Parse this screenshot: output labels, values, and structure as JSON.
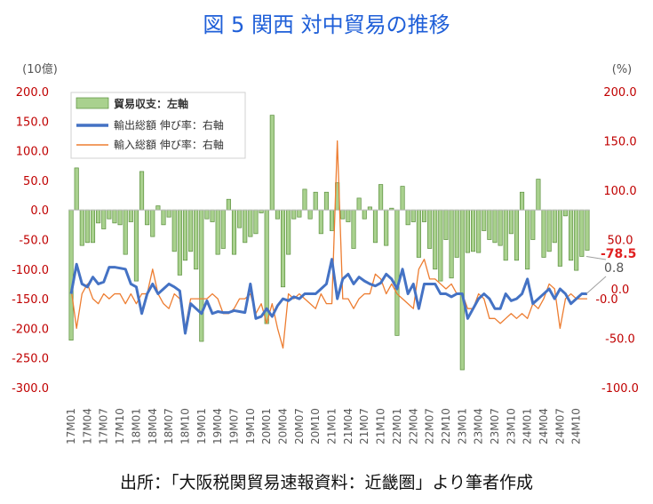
{
  "title": "図 5 関西 対中貿易の推移",
  "source": "出所：「大阪税関貿易速報資料：近畿圏」より筆者作成",
  "chart_data": {
    "type": "bar+line",
    "left_unit": "(10億)",
    "right_unit": "(%)",
    "left_ticks": [
      "200.0",
      "150.0",
      "100.0",
      "50.0",
      "0.0",
      "-50.0",
      "-100.0",
      "-150.0",
      "-200.0",
      "-250.0",
      "-300.0"
    ],
    "left_tick_values": [
      200,
      150,
      100,
      50,
      0,
      -50,
      -100,
      -150,
      -200,
      -250,
      -300
    ],
    "right_ticks": [
      "200.0",
      "150.0",
      "100.0",
      "50.0",
      "0.0",
      "-50.0",
      "-100.0"
    ],
    "right_tick_values": [
      200,
      150,
      100,
      50,
      0,
      -50,
      -100
    ],
    "right_tick_extra": "-0.0",
    "ylim_left": [
      -300,
      200
    ],
    "ylim_right": [
      -100,
      200
    ],
    "x_tick_labels": [
      "17M01",
      "17M04",
      "17M07",
      "17M10",
      "18M01",
      "18M04",
      "18M07",
      "18M10",
      "19M01",
      "19M04",
      "19M07",
      "19M10",
      "20M01",
      "20M04",
      "20M07",
      "20M10",
      "21M01",
      "21M04",
      "21M07",
      "21M10",
      "22M01",
      "22M04",
      "22M07",
      "22M10",
      "23M01",
      "23M04",
      "23M07",
      "23M10",
      "24M01",
      "24M04",
      "24M07",
      "24M10"
    ],
    "months": [
      "17M01",
      "17M02",
      "17M03",
      "17M04",
      "17M05",
      "17M06",
      "17M07",
      "17M08",
      "17M09",
      "17M10",
      "17M11",
      "17M12",
      "18M01",
      "18M02",
      "18M03",
      "18M04",
      "18M05",
      "18M06",
      "18M07",
      "18M08",
      "18M09",
      "18M10",
      "18M11",
      "18M12",
      "19M01",
      "19M02",
      "19M03",
      "19M04",
      "19M05",
      "19M06",
      "19M07",
      "19M08",
      "19M09",
      "19M10",
      "19M11",
      "19M12",
      "20M01",
      "20M02",
      "20M03",
      "20M04",
      "20M05",
      "20M06",
      "20M07",
      "20M08",
      "20M09",
      "20M10",
      "20M11",
      "20M12",
      "21M01",
      "21M02",
      "21M03",
      "21M04",
      "21M05",
      "21M06",
      "21M07",
      "21M08",
      "21M09",
      "21M10",
      "21M11",
      "21M12",
      "22M01",
      "22M02",
      "22M03",
      "22M04",
      "22M05",
      "22M06",
      "22M07",
      "22M08",
      "22M09",
      "22M10",
      "22M11",
      "22M12",
      "23M01",
      "23M02",
      "23M03",
      "23M04",
      "23M05",
      "23M06",
      "23M07",
      "23M08",
      "23M09",
      "23M10",
      "23M11",
      "23M12",
      "24M01",
      "24M02",
      "24M03",
      "24M04",
      "24M05",
      "24M06",
      "24M07",
      "24M08",
      "24M09",
      "24M10",
      "24M11",
      "24M12"
    ],
    "series": [
      {
        "name": "貿易収支：左軸",
        "axis": "left",
        "kind": "bar",
        "color": "#a9d18e",
        "stroke": "#5a8f3c",
        "values": [
          -220,
          71,
          -60,
          -55,
          -55,
          -22,
          -32,
          -15,
          -22,
          -25,
          -75,
          -20,
          -120,
          65,
          -25,
          -45,
          7,
          -25,
          -12,
          -70,
          -110,
          -85,
          -70,
          -100,
          -222,
          -15,
          -20,
          -75,
          -65,
          18,
          -75,
          -30,
          -55,
          -45,
          -40,
          -5,
          -192,
          160,
          -15,
          -130,
          -75,
          -15,
          -12,
          35,
          -15,
          30,
          -40,
          30,
          -35,
          46,
          -15,
          -20,
          -65,
          20,
          -15,
          5,
          -55,
          43,
          -60,
          3,
          -212,
          40,
          -25,
          -20,
          -80,
          -20,
          -65,
          -100,
          -120,
          -50,
          -115,
          -80,
          -270,
          -72,
          -70,
          -72,
          -35,
          -50,
          -55,
          -60,
          -85,
          -40,
          -85,
          30,
          -100,
          -50,
          52,
          -80,
          -70,
          -55,
          -95,
          -10,
          -85,
          -102,
          -78.5,
          -68
        ]
      },
      {
        "name": "輸出総額 伸び率：右軸",
        "axis": "right",
        "kind": "line",
        "color": "#4472c4",
        "values": [
          -5,
          25,
          5,
          2,
          12,
          5,
          7,
          22,
          22,
          21,
          20,
          5,
          2,
          -25,
          -5,
          5,
          -5,
          0,
          5,
          2,
          -2,
          -45,
          -15,
          -20,
          -25,
          -12,
          -25,
          -23,
          -24,
          -24,
          -22,
          -23,
          -24,
          5,
          -30,
          -28,
          -20,
          -28,
          -17,
          -10,
          -12,
          -8,
          -10,
          -5,
          -5,
          -5,
          0,
          5,
          30,
          -10,
          10,
          15,
          5,
          12,
          8,
          5,
          3,
          6,
          15,
          10,
          0,
          20,
          -5,
          5,
          -20,
          5,
          5,
          5,
          -5,
          -5,
          -8,
          -5,
          -5,
          -30,
          -20,
          -10,
          -5,
          -10,
          -20,
          -20,
          -5,
          -12,
          -10,
          -5,
          10,
          -15,
          -10,
          -5,
          0,
          -10,
          0,
          -5,
          -15,
          -10,
          -5,
          -5
        ]
      },
      {
        "name": "輸入総額 伸び率：右軸",
        "axis": "right",
        "kind": "line",
        "color": "#ed7d31",
        "values": [
          0,
          -40,
          -5,
          5,
          -10,
          -15,
          -5,
          -10,
          -5,
          -5,
          -15,
          -5,
          -15,
          -5,
          -5,
          20,
          -5,
          -15,
          -20,
          -5,
          -10,
          -40,
          -10,
          -10,
          -10,
          -10,
          -5,
          -10,
          -25,
          -25,
          -20,
          -10,
          -10,
          -5,
          -25,
          -15,
          -35,
          -15,
          -40,
          -60,
          -5,
          -10,
          -5,
          -10,
          -15,
          -20,
          -5,
          -15,
          -15,
          150,
          -10,
          -10,
          -20,
          -10,
          -5,
          -5,
          15,
          10,
          -5,
          5,
          -5,
          -10,
          -15,
          -20,
          20,
          30,
          10,
          10,
          5,
          0,
          5,
          -5,
          -5,
          -20,
          -20,
          -5,
          -10,
          -30,
          -30,
          -35,
          -30,
          -25,
          -30,
          -25,
          -30,
          -15,
          -20,
          -10,
          5,
          0,
          -40,
          -10,
          -5,
          -10,
          -10,
          -10
        ]
      }
    ],
    "annotations": [
      {
        "text": "-78.5",
        "color": "#e02020",
        "bold": true,
        "axis": "left",
        "value": -78.5
      },
      {
        "text": "0.8",
        "color": "#555555",
        "bold": false,
        "axis": "right",
        "value": 0.8
      }
    ],
    "grid": false,
    "legend": "top-left inside"
  }
}
